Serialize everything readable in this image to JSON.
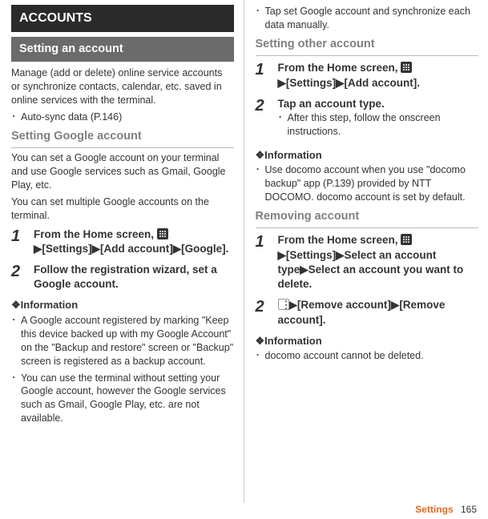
{
  "left": {
    "accounts_title": "ACCOUNTS",
    "setting_account": "Setting an account",
    "manage_text": "Manage (add or delete) online service accounts or synchronize contacts, calendar, etc. saved in online services with the terminal.",
    "auto_sync": "Auto-sync data (P.146)",
    "setting_google": "Setting Google account",
    "google_para1": "You can set a Google account on your terminal and use Google services such as Gmail, Google Play, etc.",
    "google_para2": "You can set multiple Google accounts on the terminal.",
    "step1_a": "From the Home screen, ",
    "step1_b": "[Settings]",
    "step1_c": "[Add account]",
    "step1_d": "[Google].",
    "step2": "Follow the registration wizard, set a Google account.",
    "info_label": "❖Information",
    "info1": "A Google account registered by marking \"Keep this device backed up with my Google Account\" on the \"Backup and restore\" screen or \"Backup\" screen is registered as a backup account.",
    "info2": "You can use the terminal without setting your Google account, however the Google services such as Gmail, Google Play, etc. are not available."
  },
  "right": {
    "tap_set": "Tap set Google account and synchronize each data manually.",
    "setting_other": "Setting other account",
    "other_step1_a": "From the Home screen, ",
    "other_step1_b": "[Settings]",
    "other_step1_c": "[Add account].",
    "other_step2_title": "Tap an account type.",
    "other_step2_sub": "After this step, follow the onscreen instructions.",
    "info_label": "❖Information",
    "other_info": "Use docomo account when you use \"docomo backup\" app (P.139) provided by NTT DOCOMO. docomo account is set by default.",
    "removing": "Removing account",
    "rem_step1_a": "From the Home screen, ",
    "rem_step1_b": "[Settings]",
    "rem_step1_c": "Select an account type",
    "rem_step1_d": "Select an account you want to delete.",
    "rem_step2_a": "[Remove account]",
    "rem_step2_b": "[Remove account].",
    "rem_info": "docomo account cannot be deleted."
  },
  "footer": {
    "label": "Settings",
    "page": "165"
  },
  "glyphs": {
    "arrow": "▶",
    "dot": "･"
  }
}
